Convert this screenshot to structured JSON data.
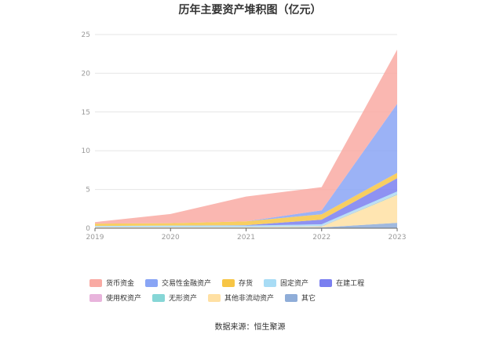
{
  "chart_data": {
    "type": "area",
    "title": "历年主要资产堆积图（亿元）",
    "x": [
      "2019",
      "2020",
      "2021",
      "2022",
      "2023"
    ],
    "yticks": [
      "0",
      "5",
      "10",
      "15",
      "20",
      "25"
    ],
    "ylim": [
      0,
      25
    ],
    "stacked": true,
    "grid": true,
    "legend_position": "bottom",
    "series": [
      {
        "name": "其它",
        "color": "#8fadd8",
        "values": [
          0.05,
          0.05,
          0.05,
          0.1,
          0.7
        ]
      },
      {
        "name": "其他非流动资产",
        "color": "#ffe0a3",
        "values": [
          0.05,
          0.05,
          0.05,
          0.1,
          3.6
        ]
      },
      {
        "name": "无形资产",
        "color": "#86d6d6",
        "values": [
          0.02,
          0.02,
          0.02,
          0.05,
          0.1
        ]
      },
      {
        "name": "使用权资产",
        "color": "#e8b4dc",
        "values": [
          0.02,
          0.02,
          0.02,
          0.05,
          0.05
        ]
      },
      {
        "name": "固定资产",
        "color": "#a8dcf5",
        "values": [
          0.15,
          0.2,
          0.2,
          0.2,
          0.3
        ]
      },
      {
        "name": "在建工程",
        "color": "#7a7ff0",
        "values": [
          0.0,
          0.0,
          0.05,
          0.6,
          1.7
        ]
      },
      {
        "name": "存货",
        "color": "#f7c545",
        "values": [
          0.3,
          0.3,
          0.5,
          0.7,
          0.7
        ]
      },
      {
        "name": "交易性金融资产",
        "color": "#89a5f5",
        "values": [
          0.0,
          0.0,
          0.0,
          0.5,
          8.9
        ]
      },
      {
        "name": "货币资金",
        "color": "#f9aaa3",
        "values": [
          0.2,
          1.2,
          3.2,
          3.0,
          7.0
        ]
      }
    ],
    "legend_order": [
      "货币资金",
      "交易性金融资产",
      "存货",
      "固定资产",
      "在建工程",
      "使用权资产",
      "无形资产",
      "其他非流动资产",
      "其它"
    ]
  },
  "source": "数据来源：恒生聚源"
}
